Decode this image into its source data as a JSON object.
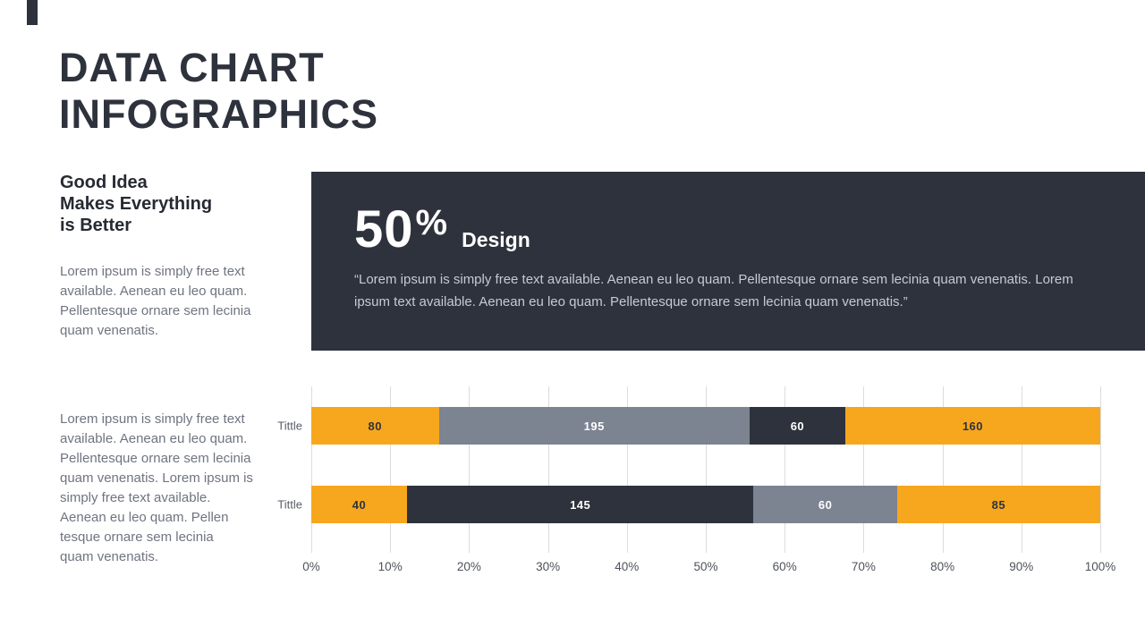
{
  "header": {
    "title_line1": "DATA CHART",
    "title_line2": "INFOGRAPHICS"
  },
  "sidebar": {
    "heading": "Good Idea\nMakes Everything\nis Better",
    "paragraph1": "Lorem ipsum is simply free text\navailable. Aenean eu leo quam.\nPellentesque ornare sem lecinia\nquam venenatis.",
    "paragraph2": "Lorem ipsum is simply free text\navailable. Aenean eu leo quam.\nPellentesque ornare sem lecinia\nquam venenatis. Lorem ipsum is\nsimply free text available.\nAenean eu leo quam. Pellen\ntesque ornare sem lecinia\nquam venenatis."
  },
  "banner": {
    "stat_value": "50",
    "stat_percent": "%",
    "stat_label": "Design",
    "quote": "“Lorem ipsum is simply free text available. Aenean eu leo quam. Pellentesque ornare sem lecinia quam venenatis. Lorem\nipsum text available. Aenean eu leo quam. Pellentesque ornare sem lecinia quam venenatis.”",
    "background_color": "#2E323C"
  },
  "colors": {
    "orange": "#F7A71D",
    "dark": "#2E323C",
    "gray": "#7C8391",
    "gridline": "#DCDCDC"
  },
  "chart_data": {
    "type": "bar",
    "orientation": "horizontal",
    "stacked": true,
    "grid": true,
    "xlim": [
      0,
      100
    ],
    "x_ticks": [
      "0%",
      "10%",
      "20%",
      "30%",
      "40%",
      "50%",
      "60%",
      "70%",
      "80%",
      "90%",
      "100%"
    ],
    "rows": [
      {
        "label": "Tittle",
        "segments": [
          {
            "value": 80,
            "color": "#F7A71D",
            "text_color": "#2E323C"
          },
          {
            "value": 195,
            "color": "#7C8391",
            "text_color": "#FFFFFF"
          },
          {
            "value": 60,
            "color": "#2E323C",
            "text_color": "#FFFFFF"
          },
          {
            "value": 160,
            "color": "#F7A71D",
            "text_color": "#2E323C"
          }
        ]
      },
      {
        "label": "Tittle",
        "segments": [
          {
            "value": 40,
            "color": "#F7A71D",
            "text_color": "#2E323C"
          },
          {
            "value": 145,
            "color": "#2E323C",
            "text_color": "#FFFFFF"
          },
          {
            "value": 60,
            "color": "#7C8391",
            "text_color": "#FFFFFF"
          },
          {
            "value": 85,
            "color": "#F7A71D",
            "text_color": "#2E323C"
          }
        ]
      }
    ]
  }
}
